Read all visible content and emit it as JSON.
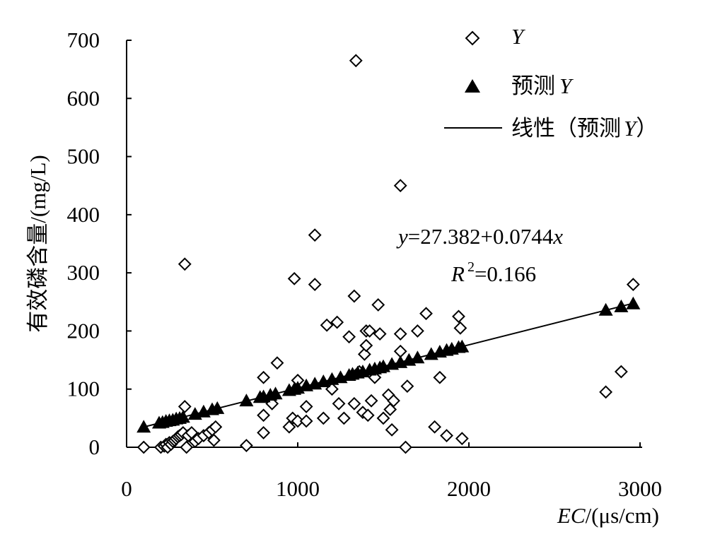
{
  "chart_data": {
    "type": "scatter",
    "xlabel_italic": "EC",
    "xlabel_rest": "/(μs/cm)",
    "ylabel": "有效磷含量/(mg/L)",
    "xlim": [
      0,
      3000
    ],
    "ylim": [
      0,
      700
    ],
    "x_ticks": [
      0,
      1000,
      2000,
      3000
    ],
    "y_ticks": [
      0,
      100,
      200,
      300,
      400,
      500,
      600,
      700
    ],
    "x_tick_labels": [
      "0",
      "1000",
      "2000",
      "3000"
    ],
    "y_tick_labels": [
      "0",
      "100",
      "200",
      "300",
      "400",
      "500",
      "600",
      "700"
    ],
    "grid": false,
    "legend_position": "top-right",
    "legend": {
      "y_label": "Y",
      "pred_prefix": "预测",
      "pred_var": "Y",
      "linear_prefix": "线性",
      "linear_open": "（预测",
      "linear_var": "Y",
      "linear_close": "）"
    },
    "equation": {
      "y_var": "y",
      "y_rhs": "=27.382+0.0744",
      "x_var": "x",
      "r_var": "R",
      "r_sup": "2",
      "r_rhs": "=0.166"
    },
    "series": [
      {
        "name": "Y",
        "marker": "open-diamond",
        "points": [
          [
            100,
            0
          ],
          [
            200,
            0
          ],
          [
            220,
            2
          ],
          [
            230,
            5
          ],
          [
            240,
            0
          ],
          [
            250,
            8
          ],
          [
            260,
            5
          ],
          [
            270,
            10
          ],
          [
            280,
            12
          ],
          [
            290,
            15
          ],
          [
            300,
            18
          ],
          [
            310,
            20
          ],
          [
            320,
            22
          ],
          [
            330,
            25
          ],
          [
            340,
            70
          ],
          [
            340,
            315
          ],
          [
            350,
            0
          ],
          [
            360,
            20
          ],
          [
            380,
            25
          ],
          [
            400,
            10
          ],
          [
            420,
            15
          ],
          [
            450,
            20
          ],
          [
            480,
            25
          ],
          [
            500,
            30
          ],
          [
            510,
            12
          ],
          [
            520,
            35
          ],
          [
            700,
            3
          ],
          [
            800,
            25
          ],
          [
            800,
            55
          ],
          [
            800,
            120
          ],
          [
            850,
            75
          ],
          [
            880,
            145
          ],
          [
            950,
            35
          ],
          [
            970,
            50
          ],
          [
            980,
            290
          ],
          [
            1000,
            45
          ],
          [
            1000,
            115
          ],
          [
            1050,
            70
          ],
          [
            1050,
            45
          ],
          [
            1100,
            365
          ],
          [
            1100,
            280
          ],
          [
            1150,
            50
          ],
          [
            1170,
            210
          ],
          [
            1200,
            100
          ],
          [
            1230,
            215
          ],
          [
            1240,
            75
          ],
          [
            1270,
            50
          ],
          [
            1300,
            190
          ],
          [
            1330,
            260
          ],
          [
            1330,
            75
          ],
          [
            1340,
            665
          ],
          [
            1360,
            130
          ],
          [
            1380,
            60
          ],
          [
            1390,
            160
          ],
          [
            1400,
            175
          ],
          [
            1400,
            200
          ],
          [
            1410,
            55
          ],
          [
            1420,
            200
          ],
          [
            1430,
            80
          ],
          [
            1450,
            120
          ],
          [
            1470,
            245
          ],
          [
            1480,
            195
          ],
          [
            1500,
            50
          ],
          [
            1530,
            90
          ],
          [
            1540,
            65
          ],
          [
            1550,
            30
          ],
          [
            1560,
            80
          ],
          [
            1600,
            450
          ],
          [
            1600,
            195
          ],
          [
            1600,
            165
          ],
          [
            1630,
            0
          ],
          [
            1640,
            105
          ],
          [
            1700,
            200
          ],
          [
            1750,
            230
          ],
          [
            1800,
            35
          ],
          [
            1830,
            120
          ],
          [
            1870,
            20
          ],
          [
            1940,
            225
          ],
          [
            1950,
            205
          ],
          [
            1960,
            15
          ],
          [
            2800,
            95
          ],
          [
            2890,
            130
          ],
          [
            2960,
            280
          ]
        ]
      },
      {
        "name": "预测Y",
        "marker": "filled-triangle",
        "points": [
          [
            100,
            35
          ],
          [
            190,
            42
          ],
          [
            210,
            43
          ],
          [
            230,
            45
          ],
          [
            250,
            46
          ],
          [
            270,
            47
          ],
          [
            290,
            49
          ],
          [
            310,
            50
          ],
          [
            330,
            52
          ],
          [
            400,
            57
          ],
          [
            450,
            61
          ],
          [
            500,
            65
          ],
          [
            530,
            67
          ],
          [
            700,
            80
          ],
          [
            780,
            86
          ],
          [
            800,
            87
          ],
          [
            840,
            90
          ],
          [
            870,
            92
          ],
          [
            950,
            98
          ],
          [
            980,
            100
          ],
          [
            1000,
            102
          ],
          [
            1050,
            106
          ],
          [
            1100,
            109
          ],
          [
            1150,
            113
          ],
          [
            1200,
            117
          ],
          [
            1250,
            120
          ],
          [
            1300,
            124
          ],
          [
            1320,
            126
          ],
          [
            1350,
            128
          ],
          [
            1380,
            130
          ],
          [
            1420,
            133
          ],
          [
            1450,
            135
          ],
          [
            1480,
            137
          ],
          [
            1500,
            139
          ],
          [
            1550,
            143
          ],
          [
            1600,
            146
          ],
          [
            1650,
            150
          ],
          [
            1700,
            154
          ],
          [
            1780,
            160
          ],
          [
            1830,
            164
          ],
          [
            1870,
            167
          ],
          [
            1900,
            169
          ],
          [
            1940,
            172
          ],
          [
            1960,
            173
          ],
          [
            2800,
            236
          ],
          [
            2890,
            242
          ],
          [
            2960,
            247
          ]
        ]
      }
    ],
    "trendline": {
      "name": "线性（预测Y）",
      "intercept": 27.382,
      "slope": 0.0744,
      "x_range": [
        100,
        2960
      ]
    }
  }
}
